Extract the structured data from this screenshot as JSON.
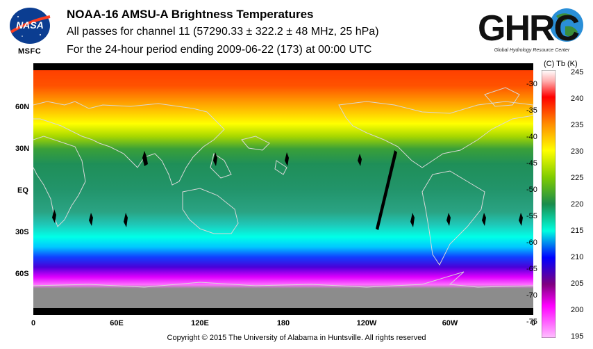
{
  "header": {
    "title": "NOAA-16 AMSU-A Brightness Temperatures",
    "line2": "All passes for channel 11 (57290.33 ± 322.2 ± 48 MHz, 25 hPa)",
    "line3": "For the 24-hour period ending 2009-06-22 (173) at 00:00 UTC"
  },
  "logos": {
    "nasa_text": "NASA",
    "msfc_label": "MSFC",
    "ghrc_text": "GHRC",
    "ghrc_sub": "Global Hydrology Resource Center"
  },
  "map": {
    "lat_labels": [
      "60N",
      "30N",
      "EQ",
      "30S",
      "60S"
    ],
    "lon_labels": [
      "0",
      "60E",
      "120E",
      "180",
      "120W",
      "60W",
      "0"
    ]
  },
  "colorbar": {
    "header": "(C)  Tb  (K)",
    "celsius_labels": [
      "-30",
      "-35",
      "-40",
      "-45",
      "-50",
      "-55",
      "-60",
      "-65",
      "-70",
      "-75"
    ],
    "kelvin_labels": [
      "245",
      "240",
      "235",
      "230",
      "225",
      "220",
      "215",
      "210",
      "205",
      "200",
      "195"
    ],
    "colors": [
      "#ffffff",
      "#ff0000",
      "#ff8c00",
      "#ffff00",
      "#7fcc00",
      "#1a8c4c",
      "#00ffe0",
      "#0000ff",
      "#ff00ff",
      "#ffc0ff"
    ]
  },
  "footer": {
    "copyright": "Copyright © 2015 The University of Alabama in Huntsville.  All rights reserved"
  }
}
